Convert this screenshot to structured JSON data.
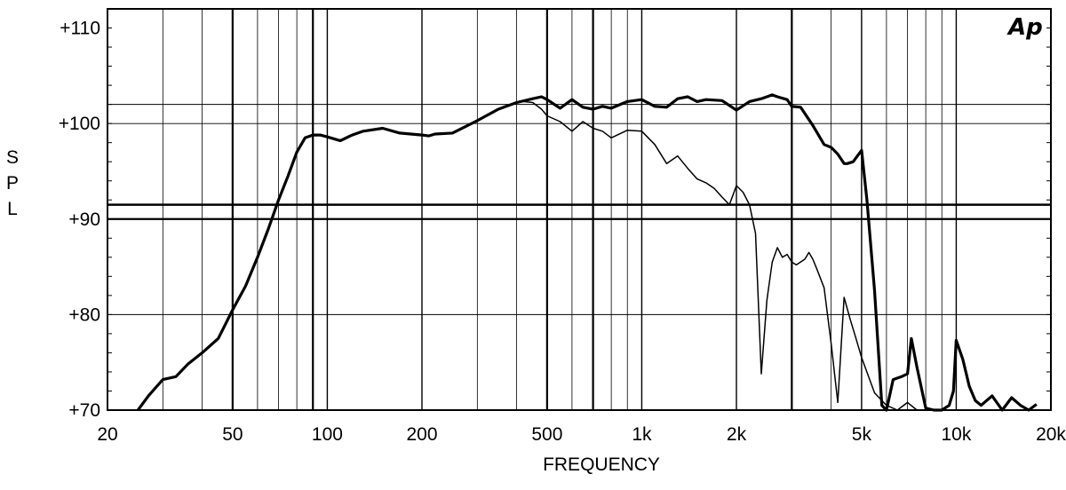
{
  "chart_data": {
    "type": "line",
    "title": "",
    "xlabel": "FREQUENCY",
    "ylabel": "SPL",
    "logo": "Ap",
    "x_scale": "log",
    "xlim": [
      20,
      20000
    ],
    "ylim": [
      70,
      112
    ],
    "grid": true,
    "x_ticks": [
      {
        "value": 20,
        "label": "20"
      },
      {
        "value": 50,
        "label": "50"
      },
      {
        "value": 100,
        "label": "100"
      },
      {
        "value": 200,
        "label": "200"
      },
      {
        "value": 500,
        "label": "500"
      },
      {
        "value": 1000,
        "label": "1k"
      },
      {
        "value": 2000,
        "label": "2k"
      },
      {
        "value": 5000,
        "label": "5k"
      },
      {
        "value": 10000,
        "label": "10k"
      },
      {
        "value": 20000,
        "label": "20k"
      }
    ],
    "y_ticks": [
      {
        "value": 70,
        "label": "+70"
      },
      {
        "value": 80,
        "label": "+80"
      },
      {
        "value": 90,
        "label": "+90"
      },
      {
        "value": 100,
        "label": "+100"
      },
      {
        "value": 110,
        "label": "+110"
      }
    ],
    "series": [
      {
        "style": "thick",
        "x": [
          25,
          27,
          30,
          33,
          36,
          40,
          45,
          50,
          55,
          60,
          65,
          70,
          75,
          80,
          85,
          90,
          95,
          100,
          110,
          120,
          130,
          150,
          170,
          200,
          210,
          220,
          250,
          300,
          350,
          400,
          450,
          480,
          500,
          550,
          600,
          650,
          700,
          750,
          800,
          900,
          1000,
          1100,
          1200,
          1300,
          1400,
          1500,
          1600,
          1800,
          2000,
          2200,
          2400,
          2600,
          2700,
          2900,
          3000,
          3200,
          3500,
          3800,
          4000,
          4200,
          4400,
          4500,
          4700,
          5000,
          5200,
          5500,
          5800,
          6000,
          6300,
          6700,
          7000,
          7200,
          7500,
          8000,
          8500,
          9000,
          9500,
          9800,
          10000,
          10500,
          11000,
          11500,
          12000,
          13000,
          14000,
          15000,
          16000,
          17000,
          18000
        ],
        "values": [
          70,
          71.5,
          73.2,
          73.5,
          74.8,
          76,
          77.5,
          80.5,
          83,
          86,
          89,
          92,
          94.5,
          97,
          98.5,
          98.8,
          98.8,
          98.6,
          98.2,
          98.8,
          99.2,
          99.5,
          99,
          98.8,
          98.7,
          98.9,
          99,
          100.3,
          101.5,
          102.2,
          102.6,
          102.8,
          102.5,
          101.6,
          102.5,
          101.7,
          101.5,
          101.8,
          101.6,
          102.3,
          102.5,
          101.8,
          101.7,
          102.6,
          102.8,
          102.3,
          102.5,
          102.4,
          101.4,
          102.3,
          102.6,
          103,
          102.8,
          102.5,
          101.8,
          101.7,
          99.8,
          97.8,
          97.5,
          96.8,
          95.8,
          95.8,
          96,
          97.2,
          92,
          82.5,
          70.5,
          70,
          73.2,
          73.5,
          73.8,
          77.5,
          74.5,
          70.2,
          70,
          70,
          70.5,
          72,
          77.3,
          75.3,
          72.5,
          71,
          70.5,
          71.5,
          70,
          71.3,
          70.5,
          70,
          70.6
        ]
      },
      {
        "style": "thin",
        "x": [
          420,
          450,
          480,
          500,
          550,
          600,
          650,
          700,
          750,
          800,
          900,
          1000,
          1100,
          1200,
          1300,
          1400,
          1500,
          1600,
          1700,
          1800,
          1900,
          2000,
          2100,
          2200,
          2300,
          2400,
          2500,
          2600,
          2700,
          2800,
          2900,
          3000,
          3100,
          3300,
          3400,
          3500,
          3600,
          3800,
          4000,
          4200,
          4400,
          4600,
          4800,
          5000,
          5500,
          6000,
          6500,
          7000,
          7500
        ],
        "values": [
          102.3,
          102.2,
          101.5,
          100.8,
          100.2,
          99.2,
          100.2,
          99.5,
          99.2,
          98.5,
          99.3,
          99.2,
          97.8,
          95.8,
          96.6,
          95.3,
          94.2,
          93.8,
          93.2,
          92.3,
          91.5,
          93.5,
          92.8,
          91.5,
          88.5,
          73.8,
          81.5,
          85.5,
          87,
          86,
          86.3,
          85.5,
          85.2,
          85.8,
          86.5,
          85.8,
          84.8,
          82.8,
          77,
          70.8,
          81.8,
          79.5,
          77.5,
          75.5,
          71.8,
          70.5,
          70,
          70.8,
          70
        ]
      }
    ]
  }
}
